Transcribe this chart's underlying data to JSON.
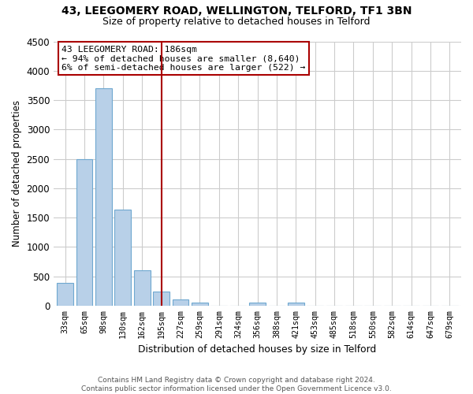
{
  "title": "43, LEEGOMERY ROAD, WELLINGTON, TELFORD, TF1 3BN",
  "subtitle": "Size of property relative to detached houses in Telford",
  "xlabel": "Distribution of detached houses by size in Telford",
  "ylabel": "Number of detached properties",
  "bar_labels": [
    "33sqm",
    "65sqm",
    "98sqm",
    "130sqm",
    "162sqm",
    "195sqm",
    "227sqm",
    "259sqm",
    "291sqm",
    "324sqm",
    "356sqm",
    "388sqm",
    "421sqm",
    "453sqm",
    "485sqm",
    "518sqm",
    "550sqm",
    "582sqm",
    "614sqm",
    "647sqm",
    "679sqm"
  ],
  "bar_values": [
    380,
    2500,
    3700,
    1630,
    600,
    240,
    100,
    55,
    0,
    0,
    55,
    0,
    55,
    0,
    0,
    0,
    0,
    0,
    0,
    0,
    0
  ],
  "annotation_title": "43 LEEGOMERY ROAD: 186sqm",
  "annotation_line1": "← 94% of detached houses are smaller (8,640)",
  "annotation_line2": "6% of semi-detached houses are larger (522) →",
  "bar_color_normal": "#b8d0e8",
  "bar_edge_color": "#6fa8d0",
  "vertical_line_color": "#aa0000",
  "annotation_box_color": "#ffffff",
  "annotation_box_edge": "#aa0000",
  "ylim": [
    0,
    4500
  ],
  "yticks": [
    0,
    500,
    1000,
    1500,
    2000,
    2500,
    3000,
    3500,
    4000,
    4500
  ],
  "background_color": "#ffffff",
  "grid_color": "#cccccc",
  "vline_x": 5.0,
  "footer_text": "Contains HM Land Registry data © Crown copyright and database right 2024.\nContains public sector information licensed under the Open Government Licence v3.0."
}
